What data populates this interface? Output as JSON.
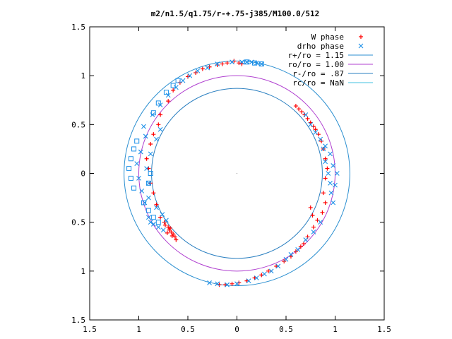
{
  "chart_data": {
    "type": "scatter",
    "title": "m2/n1.5/q1.75/r-+.75-j385/M100.0/512",
    "xlim": [
      -1.5,
      1.5
    ],
    "ylim": [
      -1.5,
      1.5
    ],
    "x_ticks": [
      -1.5,
      -1,
      -0.5,
      0,
      0.5,
      1,
      1.5
    ],
    "y_ticks": [
      -1.5,
      -1,
      -0.5,
      0,
      0.5,
      1,
      1.5
    ],
    "x_tick_labels": [
      "1.5",
      "1",
      "0.5",
      "0",
      "0.5",
      "1",
      "1.5"
    ],
    "y_tick_labels": [
      "1.5",
      "1",
      "0.5",
      "0",
      "0.5",
      "1",
      "1.5"
    ],
    "grid": false,
    "legend_position": "top-right",
    "circles": [
      {
        "name": "r+/ro = 1.15",
        "r": 1.15,
        "color": "#2b8fd0"
      },
      {
        "name": "ro/ro = 1.00",
        "r": 1.0,
        "color": "#b040d0"
      },
      {
        "name": "r-/ro = .87",
        "r": 0.87,
        "color": "#2a7fc0"
      },
      {
        "name": "rc/ro = NaN",
        "r": null,
        "color": "#40c0e0"
      }
    ],
    "series": [
      {
        "name": "W phase",
        "marker": "plus",
        "color": "#ff0000",
        "points": [
          [
            -0.03,
            1.15
          ],
          [
            0.02,
            1.13
          ],
          [
            0.05,
            1.12
          ],
          [
            -0.1,
            1.13
          ],
          [
            -0.15,
            1.12
          ],
          [
            -0.2,
            1.11
          ],
          [
            -0.28,
            1.09
          ],
          [
            -0.35,
            1.07
          ],
          [
            -0.42,
            1.03
          ],
          [
            -0.5,
            0.99
          ],
          [
            -0.58,
            0.93
          ],
          [
            -0.65,
            0.85
          ],
          [
            -0.7,
            0.74
          ],
          [
            -0.78,
            0.6
          ],
          [
            -0.8,
            0.5
          ],
          [
            -0.85,
            0.4
          ],
          [
            -0.88,
            0.3
          ],
          [
            -0.92,
            0.15
          ],
          [
            -0.9,
            0.05
          ],
          [
            -0.88,
            -0.1
          ],
          [
            -0.85,
            -0.2
          ],
          [
            -0.82,
            -0.32
          ],
          [
            -0.78,
            -0.45
          ],
          [
            -0.74,
            -0.5
          ],
          [
            -0.7,
            -0.55
          ],
          [
            -0.67,
            -0.6
          ],
          [
            -0.65,
            -0.62
          ],
          [
            -0.63,
            -0.65
          ],
          [
            -0.62,
            -0.68
          ],
          [
            -0.69,
            -0.58
          ],
          [
            -0.71,
            -0.61
          ],
          [
            -0.66,
            -0.64
          ],
          [
            -0.68,
            -0.56
          ],
          [
            -0.73,
            -0.53
          ],
          [
            0.6,
            0.69
          ],
          [
            0.63,
            0.66
          ],
          [
            0.66,
            0.63
          ],
          [
            0.69,
            0.6
          ],
          [
            0.72,
            0.56
          ],
          [
            0.75,
            0.52
          ],
          [
            0.78,
            0.48
          ],
          [
            0.8,
            0.45
          ],
          [
            0.83,
            0.4
          ],
          [
            0.86,
            0.33
          ],
          [
            0.88,
            0.25
          ],
          [
            0.9,
            0.15
          ],
          [
            0.92,
            0.05
          ],
          [
            0.9,
            -0.05
          ],
          [
            0.88,
            -0.2
          ],
          [
            0.9,
            -0.3
          ],
          [
            0.87,
            -0.4
          ],
          [
            0.82,
            -0.48
          ],
          [
            0.78,
            -0.55
          ],
          [
            0.72,
            -0.65
          ],
          [
            0.68,
            -0.72
          ],
          [
            0.65,
            -0.75
          ],
          [
            0.6,
            -0.8
          ],
          [
            0.55,
            -0.85
          ],
          [
            0.48,
            -0.9
          ],
          [
            0.4,
            -0.95
          ],
          [
            0.32,
            -1.0
          ],
          [
            0.25,
            -1.04
          ],
          [
            0.18,
            -1.07
          ],
          [
            0.1,
            -1.1
          ],
          [
            0.02,
            -1.12
          ],
          [
            -0.05,
            -1.13
          ],
          [
            -0.12,
            -1.14
          ],
          [
            -0.18,
            -1.14
          ],
          [
            0.75,
            -0.35
          ],
          [
            0.77,
            -0.43
          ]
        ]
      },
      {
        "name": "drho phase",
        "marker": "cross",
        "color": "#1a8fe8",
        "points": [
          [
            0.05,
            1.14
          ],
          [
            0.1,
            1.14
          ],
          [
            0.15,
            1.14
          ],
          [
            0.2,
            1.13
          ],
          [
            0.25,
            1.12
          ],
          [
            -0.05,
            1.14
          ],
          [
            -0.2,
            1.12
          ],
          [
            -0.3,
            1.08
          ],
          [
            -0.4,
            1.05
          ],
          [
            -0.48,
            1.0
          ],
          [
            -0.55,
            0.95
          ],
          [
            -0.62,
            0.88
          ],
          [
            -0.7,
            0.8
          ],
          [
            -0.78,
            0.7
          ],
          [
            -0.86,
            0.6
          ],
          [
            -0.95,
            0.48
          ],
          [
            -0.93,
            0.38
          ],
          [
            -0.98,
            0.22
          ],
          [
            -1.02,
            0.1
          ],
          [
            -1.0,
            -0.05
          ],
          [
            -0.97,
            -0.18
          ],
          [
            -0.94,
            -0.3
          ],
          [
            -0.9,
            -0.45
          ],
          [
            -0.88,
            -0.5
          ],
          [
            -0.85,
            -0.52
          ],
          [
            -0.8,
            -0.55
          ],
          [
            -0.75,
            -0.58
          ],
          [
            -0.72,
            -0.48
          ],
          [
            -0.76,
            -0.42
          ],
          [
            -0.82,
            -0.35
          ],
          [
            -0.9,
            -0.25
          ],
          [
            -0.9,
            -0.1
          ],
          [
            -0.92,
            0.05
          ],
          [
            -0.88,
            0.2
          ],
          [
            -0.82,
            0.35
          ],
          [
            -0.78,
            0.45
          ],
          [
            0.7,
            0.6
          ],
          [
            0.75,
            0.5
          ],
          [
            0.8,
            0.42
          ],
          [
            0.85,
            0.35
          ],
          [
            0.88,
            0.25
          ],
          [
            0.9,
            0.12
          ],
          [
            0.93,
            0.0
          ],
          [
            0.95,
            -0.1
          ],
          [
            0.96,
            -0.2
          ],
          [
            0.98,
            -0.3
          ],
          [
            1.0,
            -0.12
          ],
          [
            1.02,
            0.0
          ],
          [
            0.98,
            0.08
          ],
          [
            0.95,
            0.2
          ],
          [
            0.9,
            0.28
          ],
          [
            0.85,
            -0.5
          ],
          [
            0.78,
            -0.6
          ],
          [
            0.7,
            -0.68
          ],
          [
            0.62,
            -0.78
          ],
          [
            0.55,
            -0.83
          ],
          [
            0.5,
            -0.88
          ],
          [
            0.42,
            -0.95
          ],
          [
            0.35,
            -1.0
          ],
          [
            0.28,
            -1.03
          ],
          [
            0.2,
            -1.07
          ],
          [
            0.12,
            -1.1
          ],
          [
            0.0,
            -1.13
          ],
          [
            -0.1,
            -1.14
          ],
          [
            -0.2,
            -1.13
          ],
          [
            -0.28,
            -1.12
          ]
        ]
      },
      {
        "name": "",
        "marker": "square",
        "color": "#1a8fe8",
        "points": [
          [
            0.1,
            1.14
          ],
          [
            0.18,
            1.13
          ],
          [
            0.25,
            1.12
          ],
          [
            -0.6,
            0.95
          ],
          [
            -0.65,
            0.9
          ],
          [
            -0.72,
            0.83
          ],
          [
            -0.8,
            0.72
          ],
          [
            -0.85,
            0.62
          ],
          [
            -1.02,
            0.33
          ],
          [
            -1.05,
            0.25
          ],
          [
            -1.08,
            0.15
          ],
          [
            -1.1,
            0.05
          ],
          [
            -1.08,
            -0.05
          ],
          [
            -1.05,
            -0.15
          ],
          [
            -0.95,
            -0.3
          ],
          [
            -0.9,
            -0.38
          ],
          [
            -0.85,
            -0.45
          ],
          [
            -0.8,
            -0.5
          ],
          [
            -0.9,
            -0.1
          ],
          [
            -0.88,
            0.0
          ]
        ]
      }
    ]
  }
}
